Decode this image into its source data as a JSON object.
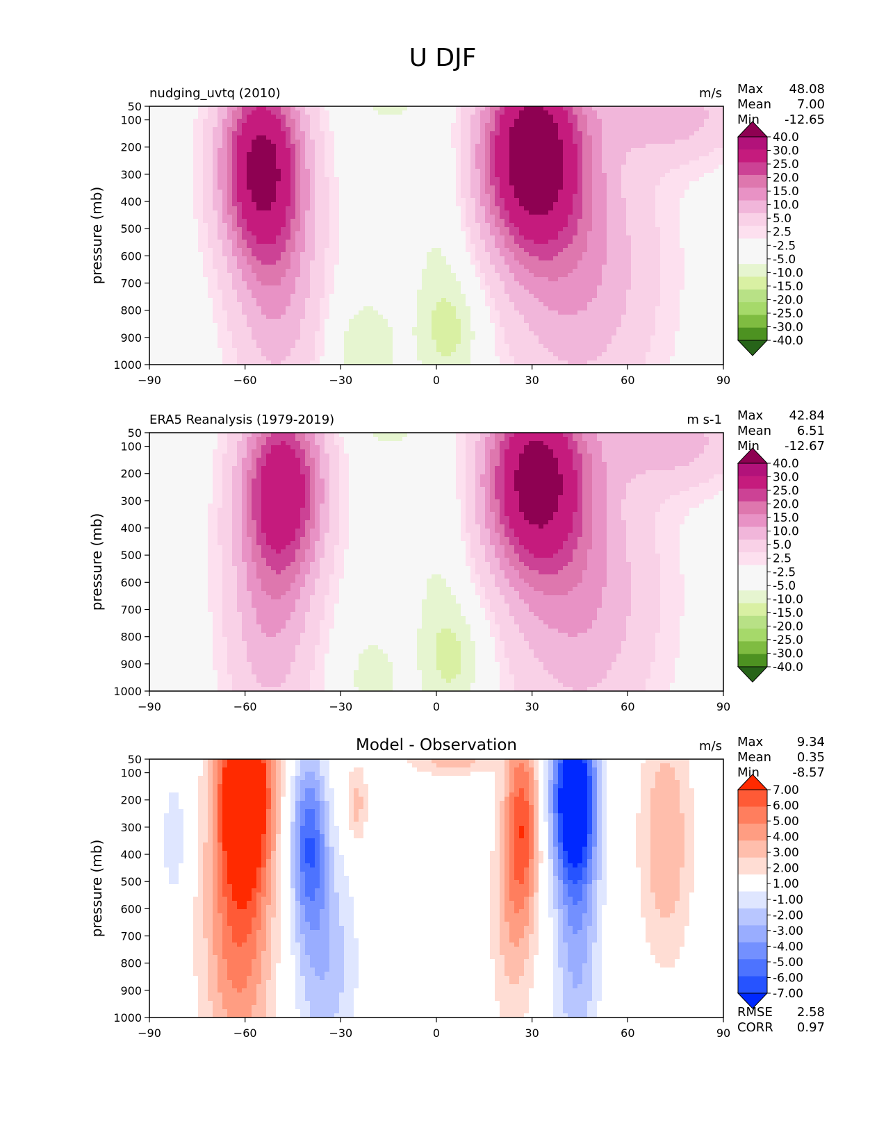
{
  "figure": {
    "title": "U DJF"
  },
  "colors": {
    "diverging_pink_green": [
      "#276419",
      "#4d9221",
      "#7fbc41",
      "#a6d96a",
      "#b8e186",
      "#d9f0a3",
      "#e6f5d0",
      "#f7f7f7",
      "#f7f7f7",
      "#fde0ef",
      "#f9d1e7",
      "#f1b6da",
      "#e892c5",
      "#de77ae",
      "#cc4295",
      "#c51b7d",
      "#b2127a",
      "#8e0152"
    ],
    "diff_blue_red": [
      "#0028ff",
      "#2653ff",
      "#4d73ff",
      "#7390ff",
      "#99adff",
      "#b8c6ff",
      "#dfe6ff",
      "#ffffff",
      "#ffddd4",
      "#ffbeac",
      "#ff9d82",
      "#ff7e5e",
      "#ff5a36",
      "#ff2a00"
    ]
  },
  "chart_data": [
    {
      "type": "heatmap",
      "id": "model",
      "title": "nudging_uvtq (2010)",
      "units": "m/s",
      "xlabel": "",
      "ylabel": "pressure (mb)",
      "xlim": [
        -90,
        90
      ],
      "ylim": [
        1000,
        50
      ],
      "xticks": [
        "−90",
        "−60",
        "−30",
        "0",
        "30",
        "60",
        "90"
      ],
      "xtick_values": [
        -90,
        -60,
        -30,
        0,
        30,
        60,
        90
      ],
      "yticks": [
        "50",
        "100",
        "200",
        "300",
        "400",
        "500",
        "600",
        "700",
        "800",
        "900",
        "1000"
      ],
      "ytick_values": [
        50,
        100,
        200,
        300,
        400,
        500,
        600,
        700,
        800,
        900,
        1000
      ],
      "stats": [
        {
          "label": "Max",
          "value": "48.08"
        },
        {
          "label": "Mean",
          "value": "7.00"
        },
        {
          "label": "Min",
          "value": "-12.65"
        }
      ],
      "colorbar": {
        "labels": [
          "40.0",
          "30.0",
          "25.0",
          "20.0",
          "15.0",
          "10.0",
          "5.0",
          "2.5",
          "-2.5",
          "-5.0",
          "-10.0",
          "-15.0",
          "-20.0",
          "-25.0",
          "-30.0",
          "-40.0"
        ],
        "levels": [
          -40,
          -30,
          -25,
          -20,
          -15,
          -10,
          -5,
          -2.5,
          2.5,
          5,
          10,
          15,
          20,
          25,
          30,
          40
        ],
        "palette": "diverging_pink_green",
        "extend": "both"
      },
      "features": [
        {
          "lat": -55,
          "p": 260,
          "amp": 40,
          "sx": 9,
          "sy": 240
        },
        {
          "lat": -50,
          "p": 700,
          "amp": 14,
          "sx": 10,
          "sy": 350
        },
        {
          "lat": 30,
          "p": 220,
          "amp": 47,
          "sx": 11,
          "sy": 250
        },
        {
          "lat": 45,
          "p": 650,
          "amp": 15,
          "sx": 17,
          "sy": 380
        },
        {
          "lat": 75,
          "p": 80,
          "amp": 12,
          "sx": 15,
          "sy": 120
        },
        {
          "lat": 5,
          "p": 880,
          "amp": -10,
          "sx": 7,
          "sy": 150
        },
        {
          "lat": -22,
          "p": 940,
          "amp": -10,
          "sx": 7,
          "sy": 130
        },
        {
          "lat": 0,
          "p": 600,
          "amp": -5,
          "sx": 6,
          "sy": 350
        },
        {
          "lat": -15,
          "p": 55,
          "amp": -6,
          "sx": 8,
          "sy": 40
        }
      ]
    },
    {
      "type": "heatmap",
      "id": "obs",
      "title": "ERA5 Reanalysis (1979-2019)",
      "units": "m s-1",
      "xlabel": "",
      "ylabel": "pressure (mb)",
      "xlim": [
        -90,
        90
      ],
      "ylim": [
        1000,
        50
      ],
      "xticks": [
        "−90",
        "−60",
        "−30",
        "0",
        "30",
        "60",
        "90"
      ],
      "xtick_values": [
        -90,
        -60,
        -30,
        0,
        30,
        60,
        90
      ],
      "yticks": [
        "50",
        "100",
        "200",
        "300",
        "400",
        "500",
        "600",
        "700",
        "800",
        "900",
        "1000"
      ],
      "ytick_values": [
        50,
        100,
        200,
        300,
        400,
        500,
        600,
        700,
        800,
        900,
        1000
      ],
      "stats": [
        {
          "label": "Max",
          "value": "42.84"
        },
        {
          "label": "Mean",
          "value": "6.51"
        },
        {
          "label": "Min",
          "value": "-12.67"
        }
      ],
      "colorbar": {
        "labels": [
          "40.0",
          "30.0",
          "25.0",
          "20.0",
          "15.0",
          "10.0",
          "5.0",
          "2.5",
          "-2.5",
          "-5.0",
          "-10.0",
          "-15.0",
          "-20.0",
          "-25.0",
          "-30.0",
          "-40.0"
        ],
        "levels": [
          -40,
          -30,
          -25,
          -20,
          -15,
          -10,
          -5,
          -2.5,
          2.5,
          5,
          10,
          15,
          20,
          25,
          30,
          40
        ],
        "palette": "diverging_pink_green",
        "extend": "both"
      },
      "features": [
        {
          "lat": -48,
          "p": 240,
          "amp": 34,
          "sx": 9,
          "sy": 230
        },
        {
          "lat": -52,
          "p": 700,
          "amp": 14,
          "sx": 10,
          "sy": 350
        },
        {
          "lat": 31,
          "p": 210,
          "amp": 42,
          "sx": 11,
          "sy": 240
        },
        {
          "lat": 45,
          "p": 650,
          "amp": 15,
          "sx": 17,
          "sy": 380
        },
        {
          "lat": 75,
          "p": 80,
          "amp": 12,
          "sx": 15,
          "sy": 120
        },
        {
          "lat": 6,
          "p": 880,
          "amp": -10,
          "sx": 7,
          "sy": 150
        },
        {
          "lat": -20,
          "p": 950,
          "amp": -8,
          "sx": 6,
          "sy": 120
        },
        {
          "lat": 0,
          "p": 600,
          "amp": -5,
          "sx": 6,
          "sy": 350
        },
        {
          "lat": -15,
          "p": 55,
          "amp": -6,
          "sx": 8,
          "sy": 40
        }
      ]
    },
    {
      "type": "heatmap",
      "id": "diff",
      "title": "Model - Observation",
      "units": "m/s",
      "xlabel": "",
      "ylabel": "pressure (mb)",
      "xlim": [
        -90,
        90
      ],
      "ylim": [
        1000,
        50
      ],
      "xticks": [
        "−90",
        "−60",
        "−30",
        "0",
        "30",
        "60",
        "90"
      ],
      "xtick_values": [
        -90,
        -60,
        -30,
        0,
        30,
        60,
        90
      ],
      "yticks": [
        "50",
        "100",
        "200",
        "300",
        "400",
        "500",
        "600",
        "700",
        "800",
        "900",
        "1000"
      ],
      "ytick_values": [
        50,
        100,
        200,
        300,
        400,
        500,
        600,
        700,
        800,
        900,
        1000
      ],
      "stats": [
        {
          "label": "Max",
          "value": "9.34"
        },
        {
          "label": "Mean",
          "value": "0.35"
        },
        {
          "label": "Min",
          "value": "-8.57"
        }
      ],
      "extra_stats": [
        {
          "label": "RMSE",
          "value": "2.58"
        },
        {
          "label": "CORR",
          "value": "0.97"
        }
      ],
      "colorbar": {
        "labels": [
          "7.00",
          "6.00",
          "5.00",
          "4.00",
          "3.00",
          "2.00",
          "1.00",
          "-1.00",
          "-2.00",
          "-3.00",
          "-4.00",
          "-5.00",
          "-6.00",
          "-7.00"
        ],
        "levels": [
          -7,
          -6,
          -5,
          -4,
          -3,
          -2,
          -1,
          1,
          2,
          3,
          4,
          5,
          6,
          7
        ],
        "palette": "diff_blue_red",
        "extend": "both"
      },
      "features": [
        {
          "lat": -60,
          "p": 150,
          "amp": 9,
          "sx": 6,
          "sy": 250
        },
        {
          "lat": -62,
          "p": 700,
          "amp": 4.5,
          "sx": 8,
          "sy": 380
        },
        {
          "lat": -40,
          "p": 350,
          "amp": -5.5,
          "sx": 4,
          "sy": 230
        },
        {
          "lat": -35,
          "p": 800,
          "amp": -2.8,
          "sx": 7,
          "sy": 300
        },
        {
          "lat": -25,
          "p": 220,
          "amp": 2.5,
          "sx": 2.5,
          "sy": 110
        },
        {
          "lat": 27,
          "p": 270,
          "amp": 5,
          "sx": 4,
          "sy": 240
        },
        {
          "lat": 24,
          "p": 650,
          "amp": 2.5,
          "sx": 5,
          "sy": 300
        },
        {
          "lat": 43,
          "p": 180,
          "amp": -8.5,
          "sx": 5,
          "sy": 220
        },
        {
          "lat": 44,
          "p": 650,
          "amp": -3.5,
          "sx": 5,
          "sy": 420
        },
        {
          "lat": 72,
          "p": 350,
          "amp": 3,
          "sx": 6,
          "sy": 320
        },
        {
          "lat": 5,
          "p": 55,
          "amp": 2.5,
          "sx": 10,
          "sy": 40
        },
        {
          "lat": -82,
          "p": 350,
          "amp": -1.8,
          "sx": 3,
          "sy": 180
        }
      ]
    }
  ]
}
